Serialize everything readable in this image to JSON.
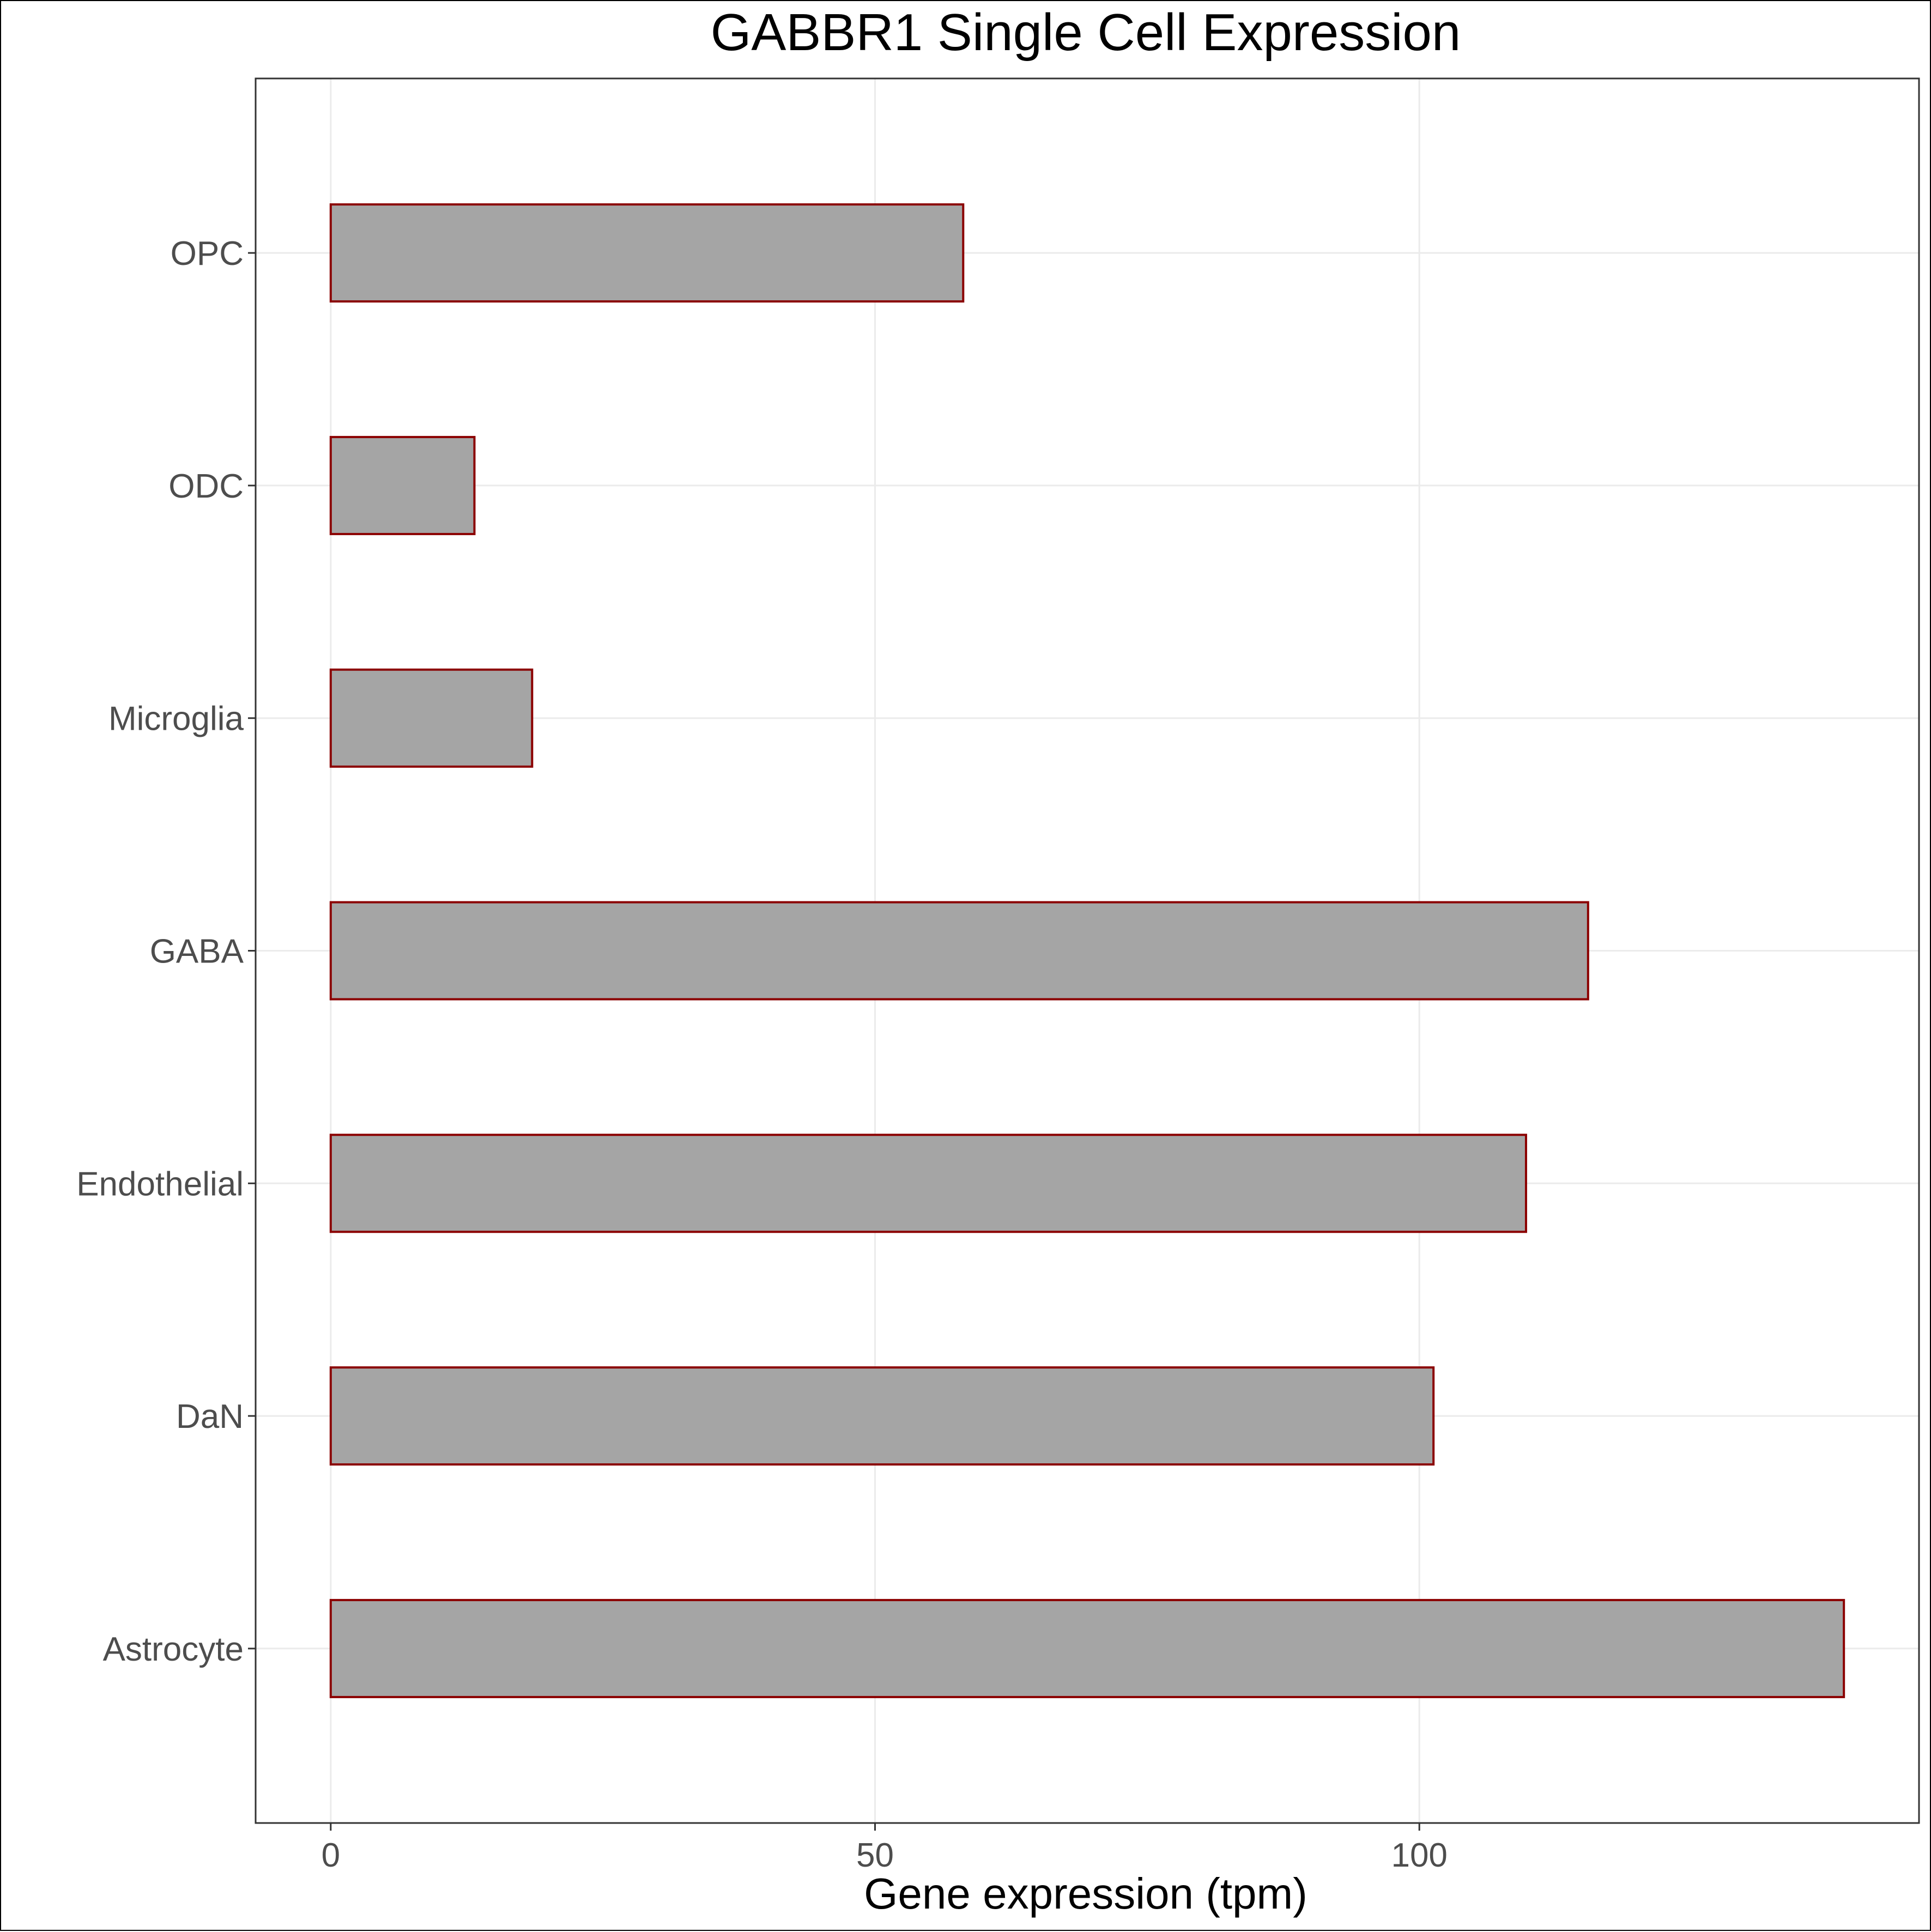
{
  "colors": {
    "bar_fill": "#a5a5a5",
    "bar_stroke": "#8b0000",
    "grid": "#ebebeb",
    "panel_border": "#333333",
    "tick_label": "#4d4d4d",
    "text": "#000000"
  },
  "chart_data": {
    "type": "bar",
    "orientation": "horizontal",
    "title": "GABBR1 Single Cell Expression",
    "xlabel": "Gene expression (tpm)",
    "ylabel": "",
    "categories": [
      "Astrocyte",
      "DaN",
      "Endothelial",
      "GABA",
      "Microglia",
      "ODC",
      "OPC"
    ],
    "values": [
      139,
      101.3,
      109.8,
      115.5,
      18.5,
      13.2,
      58.1
    ],
    "xlim": [
      -6.9,
      145.9
    ],
    "xticks": [
      0,
      50,
      100
    ],
    "xtick_labels": [
      "0",
      "50",
      "100"
    ],
    "grid": true
  }
}
